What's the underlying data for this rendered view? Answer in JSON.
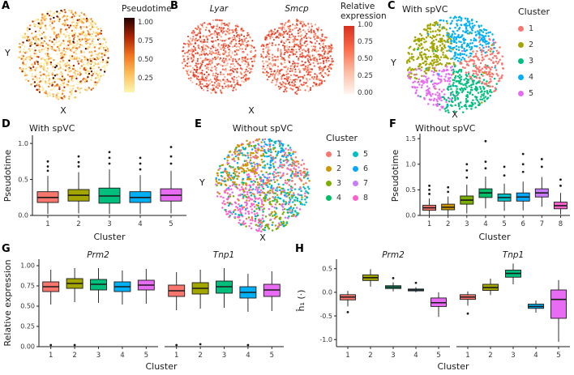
{
  "figure": {
    "background": "#ffffff",
    "panel_labels": {
      "a": "A",
      "b": "B",
      "c": "C",
      "d": "D",
      "e": "E",
      "f": "F",
      "g": "G",
      "h": "H"
    }
  },
  "labels": {
    "x": "X",
    "y": "Y",
    "cluster": "Cluster",
    "pseudotime": "Pseudotime",
    "relative_expression": "Relative expression",
    "h1": "ĥ₁ (·)",
    "with_spvc": "With spVC",
    "without_spvc": "Without spVC",
    "genes": {
      "lyar": "Lyar",
      "smcp": "Smcp",
      "prm2": "Prm2",
      "tnp1": "Tnp1"
    }
  },
  "legends": {
    "pseudotime": {
      "title": "Pseudotime",
      "ticks": [
        "1.00",
        "0.75",
        "0.50",
        "0.25"
      ]
    },
    "expression": {
      "title_line1": "Relative",
      "title_line2": "expression",
      "ticks": [
        "1.00",
        "0.75",
        "0.50",
        "0.25",
        "0.00"
      ]
    },
    "cluster5": {
      "title": "Cluster",
      "items": [
        {
          "label": "1",
          "color": "#F8766D"
        },
        {
          "label": "2",
          "color": "#A3A500"
        },
        {
          "label": "3",
          "color": "#00BF7D"
        },
        {
          "label": "4",
          "color": "#00B0F6"
        },
        {
          "label": "5",
          "color": "#E76BF3"
        }
      ]
    },
    "cluster8": {
      "title": "Cluster",
      "items": [
        {
          "label": "1",
          "color": "#F8766D"
        },
        {
          "label": "2",
          "color": "#CD9600"
        },
        {
          "label": "3",
          "color": "#7CAE00"
        },
        {
          "label": "4",
          "color": "#00BE67"
        },
        {
          "label": "5",
          "color": "#00BFC4"
        },
        {
          "label": "6",
          "color": "#00A9FF"
        },
        {
          "label": "7",
          "color": "#C77CFF"
        },
        {
          "label": "8",
          "color": "#FF61CC"
        }
      ]
    }
  },
  "chart_data": [
    {
      "panel": "A",
      "type": "scatter",
      "shape": "circular tissue section",
      "xlabel": "X",
      "ylabel": "Y",
      "color_by": "Pseudotime",
      "n_points": 950,
      "value_distribution": "mostly low pseudotime (0.05-0.45) with sparse high/dark points",
      "colormap": {
        "low_to_high_stops": [
          "#FCF6B1",
          "#FDBE5C",
          "#F1731D",
          "#A82203",
          "#230101"
        ],
        "range": [
          0,
          1
        ],
        "legend_ticks": [
          1.0,
          0.75,
          0.5,
          0.25
        ]
      }
    },
    {
      "panel": "B",
      "type": "scatter",
      "shape": "circular tissue section",
      "xlabel": "X",
      "facets": [
        "Lyar",
        "Smcp"
      ],
      "color_by": "Relative expression",
      "n_points_per_facet": 750,
      "value_distribution": "moderate to high relative expression across section",
      "colormap": {
        "low_to_high_stops": [
          "#FFF5F0",
          "#FCBBA1",
          "#FB6A4A",
          "#D7301F"
        ],
        "range": [
          0,
          1
        ],
        "legend_ticks": [
          1.0,
          0.75,
          0.5,
          0.25,
          0.0
        ]
      }
    },
    {
      "panel": "C",
      "type": "scatter",
      "shape": "circular tissue section",
      "title": "With spVC",
      "xlabel": "X",
      "ylabel": "Y",
      "color_by": "Cluster",
      "categories": [
        "1",
        "2",
        "3",
        "4",
        "5"
      ],
      "colors": [
        "#F8766D",
        "#A3A500",
        "#00BF7D",
        "#00B0F6",
        "#E76BF3"
      ],
      "n_points": 1050,
      "spatial_layout": {
        "1": "right/center-right",
        "2": "left and upper-left",
        "3": "bottom-center",
        "4": "upper-right",
        "5": "lower-left"
      }
    },
    {
      "panel": "D",
      "type": "box",
      "title": "With spVC",
      "xlabel": "Cluster",
      "ylabel": "Pseudotime",
      "categories": [
        "1",
        "2",
        "3",
        "4",
        "5"
      ],
      "colors": [
        "#F8766D",
        "#A3A500",
        "#00BF7D",
        "#00B0F6",
        "#E76BF3"
      ],
      "ylim": [
        0,
        1.08
      ],
      "yticks": [
        "0.0",
        "0.5",
        "1.0"
      ],
      "boxes": [
        {
          "lo": 0.02,
          "q1": 0.18,
          "med": 0.25,
          "q3": 0.33,
          "hi": 0.55,
          "out": [
            0.62,
            0.68,
            0.75
          ]
        },
        {
          "lo": 0.03,
          "q1": 0.2,
          "med": 0.28,
          "q3": 0.36,
          "hi": 0.6,
          "out": [
            0.68,
            0.74,
            0.82
          ]
        },
        {
          "lo": 0.02,
          "q1": 0.17,
          "med": 0.27,
          "q3": 0.38,
          "hi": 0.64,
          "out": [
            0.72,
            0.8,
            0.88
          ]
        },
        {
          "lo": 0.02,
          "q1": 0.18,
          "med": 0.25,
          "q3": 0.33,
          "hi": 0.56,
          "out": [
            0.64,
            0.72,
            0.8
          ]
        },
        {
          "lo": 0.03,
          "q1": 0.2,
          "med": 0.28,
          "q3": 0.37,
          "hi": 0.62,
          "out": [
            0.72,
            0.82,
            0.95
          ]
        }
      ]
    },
    {
      "panel": "E",
      "type": "scatter",
      "shape": "circular tissue section",
      "title": "Without spVC",
      "xlabel": "X",
      "ylabel": "Y",
      "color_by": "Cluster",
      "categories": [
        "1",
        "2",
        "3",
        "4",
        "5",
        "6",
        "7",
        "8"
      ],
      "colors": [
        "#F8766D",
        "#CD9600",
        "#7CAE00",
        "#00BE67",
        "#00BFC4",
        "#00A9FF",
        "#C77CFF",
        "#FF61CC"
      ],
      "n_points": 1050,
      "spatial_layout": "clusters heavily intermixed / speckled across the section"
    },
    {
      "panel": "F",
      "type": "box",
      "title": "Without spVC",
      "xlabel": "Cluster",
      "ylabel": "Pseudotime",
      "categories": [
        "1",
        "2",
        "3",
        "4",
        "5",
        "6",
        "7",
        "8"
      ],
      "colors": [
        "#F8766D",
        "#CD9600",
        "#7CAE00",
        "#00BE67",
        "#00BFC4",
        "#00A9FF",
        "#C77CFF",
        "#FF61CC"
      ],
      "ylim": [
        0,
        1.55
      ],
      "yticks": [
        "0.0",
        "0.5",
        "1.0",
        "1.5"
      ],
      "boxes": [
        {
          "lo": 0.01,
          "q1": 0.1,
          "med": 0.15,
          "q3": 0.2,
          "hi": 0.33,
          "out": [
            0.42,
            0.5,
            0.58
          ]
        },
        {
          "lo": 0.01,
          "q1": 0.11,
          "med": 0.16,
          "q3": 0.22,
          "hi": 0.37,
          "out": [
            0.46,
            0.55
          ]
        },
        {
          "lo": 0.04,
          "q1": 0.22,
          "med": 0.3,
          "q3": 0.38,
          "hi": 0.6,
          "out": [
            0.74,
            0.88,
            1.0
          ]
        },
        {
          "lo": 0.14,
          "q1": 0.35,
          "med": 0.44,
          "q3": 0.52,
          "hi": 0.76,
          "out": [
            0.92,
            1.05,
            1.45
          ]
        },
        {
          "lo": 0.09,
          "q1": 0.28,
          "med": 0.35,
          "q3": 0.42,
          "hi": 0.62,
          "out": [
            0.78,
            0.95
          ]
        },
        {
          "lo": 0.1,
          "q1": 0.28,
          "med": 0.36,
          "q3": 0.44,
          "hi": 0.66,
          "out": [
            0.85,
            1.0,
            1.2
          ]
        },
        {
          "lo": 0.17,
          "q1": 0.36,
          "med": 0.44,
          "q3": 0.52,
          "hi": 0.75,
          "out": [
            0.95,
            1.1
          ]
        },
        {
          "lo": 0.02,
          "q1": 0.13,
          "med": 0.19,
          "q3": 0.26,
          "hi": 0.44,
          "out": [
            0.58,
            0.7
          ]
        }
      ]
    },
    {
      "panel": "G",
      "type": "box-faceted",
      "xlabel": "Cluster",
      "ylabel": "Relative expression",
      "categories": [
        "1",
        "2",
        "3",
        "4",
        "5"
      ],
      "colors": [
        "#F8766D",
        "#A3A500",
        "#00BF7D",
        "#00B0F6",
        "#E76BF3"
      ],
      "ylim": [
        0,
        1.05
      ],
      "yticks": [
        "0.00",
        "0.25",
        "0.50",
        "0.75",
        "1.00"
      ],
      "facets": [
        {
          "name": "Prm2",
          "boxes": [
            {
              "lo": 0.52,
              "q1": 0.68,
              "med": 0.74,
              "q3": 0.8,
              "hi": 0.95,
              "out": [
                0.02
              ]
            },
            {
              "lo": 0.55,
              "q1": 0.72,
              "med": 0.78,
              "q3": 0.84,
              "hi": 0.97,
              "out": [
                0.02
              ]
            },
            {
              "lo": 0.54,
              "q1": 0.7,
              "med": 0.77,
              "q3": 0.83,
              "hi": 0.97,
              "out": []
            },
            {
              "lo": 0.52,
              "q1": 0.68,
              "med": 0.74,
              "q3": 0.8,
              "hi": 0.94,
              "out": []
            },
            {
              "lo": 0.53,
              "q1": 0.7,
              "med": 0.76,
              "q3": 0.82,
              "hi": 0.96,
              "out": []
            }
          ]
        },
        {
          "name": "Tnp1",
          "boxes": [
            {
              "lo": 0.45,
              "q1": 0.62,
              "med": 0.69,
              "q3": 0.76,
              "hi": 0.92,
              "out": [
                0.02
              ]
            },
            {
              "lo": 0.47,
              "q1": 0.65,
              "med": 0.72,
              "q3": 0.79,
              "hi": 0.95,
              "out": [
                0.03
              ]
            },
            {
              "lo": 0.48,
              "q1": 0.66,
              "med": 0.74,
              "q3": 0.81,
              "hi": 0.97,
              "out": []
            },
            {
              "lo": 0.43,
              "q1": 0.6,
              "med": 0.67,
              "q3": 0.74,
              "hi": 0.9,
              "out": [
                0.02
              ]
            },
            {
              "lo": 0.44,
              "q1": 0.62,
              "med": 0.7,
              "q3": 0.77,
              "hi": 0.93,
              "out": []
            }
          ]
        }
      ]
    },
    {
      "panel": "H",
      "type": "box-faceted",
      "xlabel": "Cluster",
      "ylabel": "ĥ₁ (·)",
      "categories": [
        "1",
        "2",
        "3",
        "4",
        "5"
      ],
      "colors": [
        "#F8766D",
        "#A3A500",
        "#00BF7D",
        "#00B0F6",
        "#E76BF3"
      ],
      "ylim": [
        -1.15,
        0.65
      ],
      "yticks": [
        "0.5",
        "0.0",
        "-0.5",
        "-1.0"
      ],
      "facets": [
        {
          "name": "Prm2",
          "boxes": [
            {
              "lo": -0.3,
              "q1": -0.16,
              "med": -0.1,
              "q3": -0.05,
              "hi": 0.03,
              "out": [
                -0.42
              ]
            },
            {
              "lo": 0.12,
              "q1": 0.25,
              "med": 0.31,
              "q3": 0.37,
              "hi": 0.49,
              "out": []
            },
            {
              "lo": 0.02,
              "q1": 0.08,
              "med": 0.11,
              "q3": 0.14,
              "hi": 0.21,
              "out": [
                0.3
              ]
            },
            {
              "lo": 0.0,
              "q1": 0.03,
              "med": 0.05,
              "q3": 0.07,
              "hi": 0.11,
              "out": [
                0.2
              ]
            },
            {
              "lo": -0.52,
              "q1": -0.3,
              "med": -0.22,
              "q3": -0.12,
              "hi": 0.0,
              "out": []
            }
          ]
        },
        {
          "name": "Tnp1",
          "boxes": [
            {
              "lo": -0.28,
              "q1": -0.15,
              "med": -0.1,
              "q3": -0.05,
              "hi": 0.02,
              "out": [
                -0.45
              ]
            },
            {
              "lo": -0.06,
              "q1": 0.04,
              "med": 0.1,
              "q3": 0.17,
              "hi": 0.29,
              "out": []
            },
            {
              "lo": 0.17,
              "q1": 0.32,
              "med": 0.4,
              "q3": 0.47,
              "hi": 0.61,
              "out": []
            },
            {
              "lo": -0.43,
              "q1": -0.34,
              "med": -0.3,
              "q3": -0.25,
              "hi": -0.17,
              "out": []
            },
            {
              "lo": -1.05,
              "q1": -0.55,
              "med": -0.15,
              "q3": 0.05,
              "hi": 0.26,
              "out": []
            }
          ]
        }
      ]
    }
  ]
}
